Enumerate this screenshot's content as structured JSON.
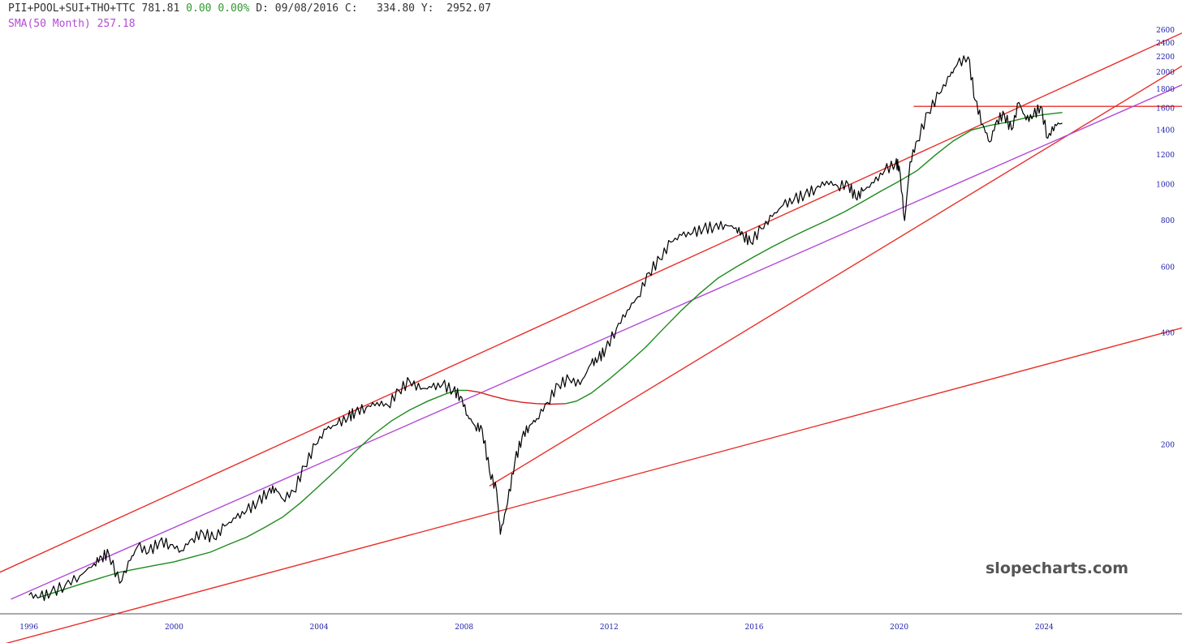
{
  "header": {
    "symbol": "PII+POOL+SUI+THO+TTC",
    "last": "781.81",
    "change": "0.00",
    "change_pct": "0.00%",
    "date_label": "D:",
    "date": "09/08/2016",
    "c_label": "C:",
    "c_value": "334.80",
    "y_label": "Y:",
    "y_value": "2952.07",
    "indicator_label": "SMA(50 Month)",
    "indicator_value": "257.18"
  },
  "watermark": "slopecharts.com",
  "colors": {
    "price": "#000000",
    "sma": "#1e8a1e",
    "sma_below": "#d62020",
    "trendline": "#e8302a",
    "regression": "#b44ad6",
    "indicator_text": "#b44ad6",
    "positive": "#2e9a2e",
    "axis_text": "#1a1aa8"
  },
  "chart_data": {
    "type": "line",
    "title": "",
    "xlabel": "",
    "ylabel": "",
    "y_scale": "log",
    "x_range": [
      1995.2,
      2027.8
    ],
    "y_range": [
      77,
      2650
    ],
    "x_ticks": [
      {
        "value": 1996,
        "label": "1996"
      },
      {
        "value": 2000,
        "label": "2000"
      },
      {
        "value": 2004,
        "label": "2004"
      },
      {
        "value": 2008,
        "label": "2008"
      },
      {
        "value": 2012,
        "label": "2012"
      },
      {
        "value": 2016,
        "label": "2016"
      },
      {
        "value": 2020,
        "label": "2020"
      },
      {
        "value": 2024,
        "label": "2024"
      }
    ],
    "y_ticks": [
      {
        "value": 2600,
        "label": "2600"
      },
      {
        "value": 2400,
        "label": "2400"
      },
      {
        "value": 2200,
        "label": "2200"
      },
      {
        "value": 2000,
        "label": "2000"
      },
      {
        "value": 1800,
        "label": "1800"
      },
      {
        "value": 1600,
        "label": "1600"
      },
      {
        "value": 1400,
        "label": "1400"
      },
      {
        "value": 1200,
        "label": "1200"
      },
      {
        "value": 1000,
        "label": "1000"
      },
      {
        "value": 800,
        "label": "800"
      },
      {
        "value": 600,
        "label": "600"
      },
      {
        "value": 400,
        "label": "400"
      },
      {
        "value": 200,
        "label": "200"
      }
    ],
    "grid": false,
    "series": [
      {
        "key": "price",
        "kind": "price",
        "x": [
          1996.0,
          1996.3,
          1996.6,
          1997.0,
          1997.4,
          1997.8,
          1998.0,
          1998.2,
          1998.5,
          1998.8,
          1999.0,
          1999.3,
          1999.6,
          1999.9,
          2000.2,
          2000.5,
          2000.8,
          2001.1,
          2001.4,
          2001.7,
          2002.0,
          2002.3,
          2002.6,
          2002.8,
          2003.0,
          2003.3,
          2003.6,
          2003.9,
          2004.2,
          2004.5,
          2004.8,
          2005.0,
          2005.3,
          2005.6,
          2005.9,
          2006.2,
          2006.5,
          2006.8,
          2007.1,
          2007.4,
          2007.7,
          2007.9,
          2008.1,
          2008.3,
          2008.5,
          2008.7,
          2008.9,
          2009.0,
          2009.2,
          2009.4,
          2009.6,
          2009.8,
          2010.0,
          2010.3,
          2010.6,
          2010.9,
          2011.2,
          2011.5,
          2011.7,
          2011.9,
          2012.2,
          2012.5,
          2012.8,
          2013.1,
          2013.4,
          2013.7,
          2014.0,
          2014.3,
          2014.6,
          2014.9,
          2015.2,
          2015.5,
          2015.7,
          2015.9,
          2016.2,
          2016.5,
          2016.8,
          2017.1,
          2017.4,
          2017.7,
          2018.0,
          2018.3,
          2018.6,
          2018.8,
          2019.0,
          2019.3,
          2019.6,
          2019.9,
          2020.0,
          2020.15,
          2020.3,
          2020.5,
          2020.8,
          2021.1,
          2021.4,
          2021.6,
          2021.9,
          2022.1,
          2022.3,
          2022.5,
          2022.7,
          2022.9,
          2023.1,
          2023.3,
          2023.5,
          2023.7,
          2023.9,
          2024.1,
          2024.3,
          2024.5
        ],
        "y": [
          79,
          78,
          80,
          84,
          89,
          96,
          100,
          102,
          85,
          98,
          107,
          103,
          110,
          108,
          104,
          112,
          116,
          112,
          121,
          127,
          133,
          140,
          150,
          153,
          143,
          150,
          175,
          200,
          220,
          227,
          237,
          245,
          252,
          260,
          255,
          280,
          296,
          282,
          285,
          290,
          280,
          270,
          240,
          225,
          220,
          170,
          150,
          115,
          140,
          180,
          210,
          225,
          235,
          260,
          290,
          300,
          290,
          330,
          340,
          360,
          410,
          460,
          500,
          580,
          630,
          700,
          730,
          740,
          760,
          770,
          780,
          765,
          730,
          700,
          760,
          820,
          880,
          910,
          940,
          975,
          1020,
          990,
          1000,
          920,
          960,
          1010,
          1090,
          1140,
          1120,
          800,
          1150,
          1310,
          1560,
          1750,
          1950,
          2100,
          2200,
          1680,
          1450,
          1300,
          1490,
          1540,
          1400,
          1660,
          1490,
          1530,
          1620,
          1330,
          1450,
          1460
        ]
      },
      {
        "key": "sma",
        "kind": "sma",
        "x": [
          1996.3,
          1997.0,
          1997.5,
          1998.0,
          1998.5,
          1999.0,
          1999.5,
          2000.0,
          2000.5,
          2001.0,
          2001.5,
          2002.0,
          2002.5,
          2003.0,
          2003.5,
          2004.0,
          2004.5,
          2005.0,
          2005.5,
          2006.0,
          2006.5,
          2007.0,
          2007.5,
          2007.8,
          2008.1,
          2008.4,
          2008.8,
          2009.2,
          2009.6,
          2010.0,
          2010.4,
          2010.8,
          2011.1,
          2011.5,
          2012.0,
          2012.5,
          2013.0,
          2013.5,
          2014.0,
          2014.5,
          2015.0,
          2015.5,
          2016.0,
          2016.5,
          2017.0,
          2017.5,
          2018.0,
          2018.5,
          2019.0,
          2019.5,
          2020.0,
          2020.5,
          2021.0,
          2021.5,
          2022.0,
          2022.5,
          2023.0,
          2023.5,
          2024.0,
          2024.5
        ],
        "y": [
          78,
          82,
          85,
          88,
          91,
          93,
          95,
          97,
          100,
          103,
          108,
          113,
          120,
          128,
          140,
          155,
          172,
          192,
          213,
          232,
          248,
          262,
          274,
          280,
          280,
          277,
          270,
          264,
          260,
          258,
          257,
          258,
          262,
          275,
          300,
          330,
          365,
          410,
          460,
          510,
          560,
          600,
          640,
          680,
          720,
          760,
          800,
          845,
          900,
          960,
          1020,
          1090,
          1200,
          1310,
          1400,
          1440,
          1470,
          1510,
          1540,
          1560
        ]
      },
      {
        "key": "t_upper",
        "kind": "trend",
        "x": [
          1995.2,
          2027.8
        ],
        "y": [
          91,
          2550
        ]
      },
      {
        "key": "t_lower",
        "kind": "trend",
        "x": [
          1995.2,
          2027.8
        ],
        "y": [
          58,
          412
        ]
      },
      {
        "key": "t_steep",
        "kind": "trend",
        "x": [
          2008.7,
          2027.8
        ],
        "y": [
          155,
          2080
        ]
      },
      {
        "key": "t_horizontal",
        "kind": "trend",
        "x": [
          2020.4,
          2027.8
        ],
        "y": [
          1620,
          1620
        ]
      },
      {
        "key": "regression",
        "kind": "regression",
        "x": [
          1995.5,
          2027.8
        ],
        "y": [
          77,
          1850
        ]
      }
    ]
  }
}
